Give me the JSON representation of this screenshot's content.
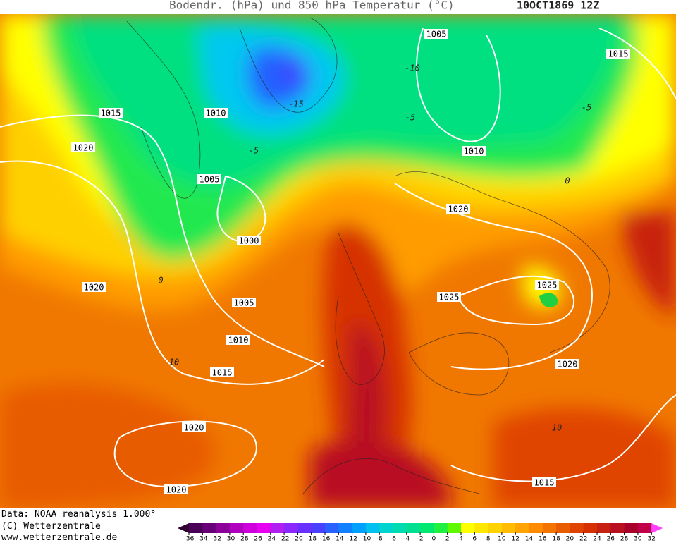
{
  "header": {
    "title": "Bodendr. (hPa) und 850 hPa Temperatur (°C)",
    "date": "10OCT1869 12Z"
  },
  "map": {
    "isobar_labels": [
      1005,
      1015,
      1015,
      1010,
      1010,
      1020,
      1005,
      1020,
      1000,
      1020,
      1025,
      1025,
      1005,
      1010,
      1015,
      1020,
      1020,
      1020,
      1015
    ],
    "temperature_labels": [
      -10,
      -15,
      -5,
      -5,
      -5,
      0,
      0,
      10,
      10
    ]
  },
  "footer": {
    "lines": [
      "Data: NOAA reanalysis 1.000°",
      "(C) Wetterzentrale",
      "www.wetterzentrale.de"
    ]
  },
  "legend": {
    "ticks": [
      -36,
      -34,
      -32,
      -30,
      -28,
      -26,
      -24,
      -22,
      -20,
      -18,
      -16,
      -14,
      -12,
      -10,
      -8,
      -6,
      -4,
      -2,
      0,
      2,
      4,
      6,
      8,
      10,
      12,
      14,
      16,
      18,
      20,
      22,
      24,
      26,
      28,
      30,
      32
    ],
    "colors": [
      "#4a0058",
      "#6a0078",
      "#8c009a",
      "#b000c0",
      "#d000dc",
      "#e800f0",
      "#b020f0",
      "#8c28ff",
      "#6a30ff",
      "#4a40ff",
      "#2a60ff",
      "#1080ff",
      "#00a0ff",
      "#00c0f0",
      "#00d4d0",
      "#00dcb0",
      "#00e090",
      "#00e870",
      "#20f040",
      "#60f800",
      "#ffff00",
      "#ffe800",
      "#ffd200",
      "#ffbc00",
      "#ffa400",
      "#ff8c00",
      "#f47400",
      "#ea5c00",
      "#e04400",
      "#d63000",
      "#c82010",
      "#b81020",
      "#a80028",
      "#c00048",
      "#e00068",
      "#ff2890"
    ],
    "low_color": "#300030",
    "high_color": "#ff40ff"
  }
}
